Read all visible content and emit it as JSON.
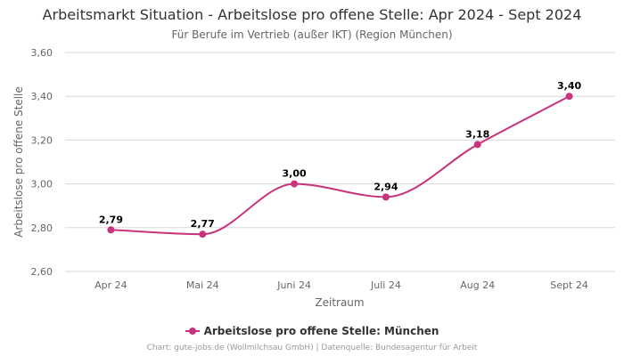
{
  "colors": {
    "series": "#c8337b",
    "grid": "#d8d8d8"
  },
  "chart_data": {
    "type": "line",
    "title": "Arbeitsmarkt Situation - Arbeitslose pro offene Stelle: Apr 2024 - Sept 2024",
    "subtitle": "Für Berufe im Vertrieb (außer IKT) (Region München)",
    "xlabel": "Zeitraum",
    "ylabel": "Arbeitslose pro offene Stelle",
    "categories": [
      "Apr 24",
      "Mai 24",
      "Juni 24",
      "Juli 24",
      "Aug 24",
      "Sept 24"
    ],
    "series": [
      {
        "name": "Arbeitslose pro offene Stelle: München",
        "values": [
          2.79,
          2.77,
          3.0,
          2.94,
          3.18,
          3.4
        ],
        "labels": [
          "2,79",
          "2,77",
          "3,00",
          "2,94",
          "3,18",
          "3,40"
        ]
      }
    ],
    "ylim": [
      2.6,
      3.6
    ],
    "yticks": [
      2.6,
      2.8,
      3.0,
      3.2,
      3.4,
      3.6
    ],
    "ytick_labels": [
      "2,60",
      "2,80",
      "3,00",
      "3,20",
      "3,40",
      "3,60"
    ],
    "grid": true,
    "legend_position": "bottom-center"
  },
  "credits": "Chart: gute-jobs.de (Wollmilchsau GmbH) | Datenquelle: Bundesagentur für Arbeit"
}
